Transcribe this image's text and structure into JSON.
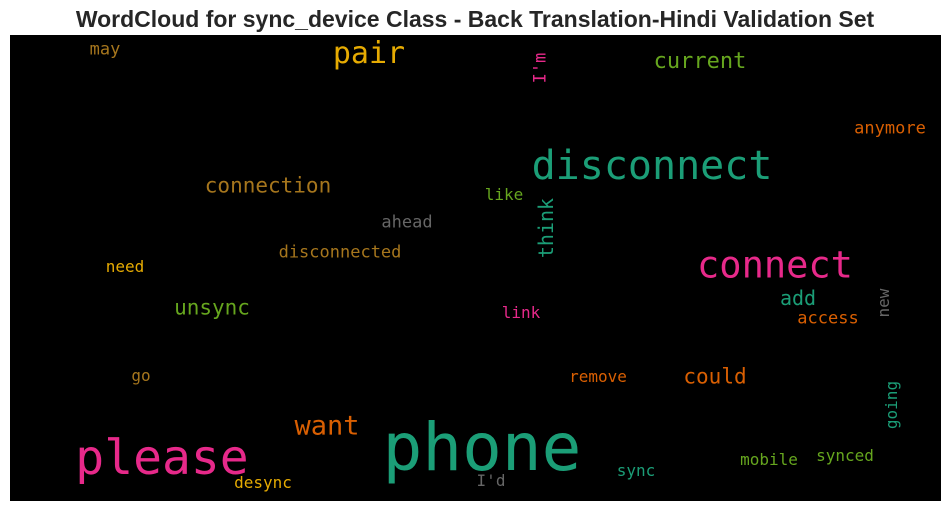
{
  "title": "WordCloud for sync_device Class - Back Translation-Hindi Validation Set",
  "chart_data": {
    "type": "wordcloud",
    "background": "#000000",
    "words": [
      {
        "text": "phone",
        "color": "#1b9e77",
        "weight": 1.0
      },
      {
        "text": "please",
        "color": "#e7298a",
        "weight": 0.78
      },
      {
        "text": "disconnect",
        "color": "#1b9e77",
        "weight": 0.66
      },
      {
        "text": "connect",
        "color": "#e7298a",
        "weight": 0.62
      },
      {
        "text": "pair",
        "color": "#e6ab02",
        "weight": 0.5
      },
      {
        "text": "want",
        "color": "#d95f02",
        "weight": 0.45
      },
      {
        "text": "current",
        "color": "#66a61e",
        "weight": 0.38
      },
      {
        "text": "connection",
        "color": "#a6761d",
        "weight": 0.35
      },
      {
        "text": "unsync",
        "color": "#66a61e",
        "weight": 0.35
      },
      {
        "text": "could",
        "color": "#d95f02",
        "weight": 0.35
      },
      {
        "text": "think",
        "color": "#1b9e77",
        "weight": 0.33
      },
      {
        "text": "add",
        "color": "#1b9e77",
        "weight": 0.33
      },
      {
        "text": "anymore",
        "color": "#d95f02",
        "weight": 0.28
      },
      {
        "text": "disconnected",
        "color": "#a6761d",
        "weight": 0.28
      },
      {
        "text": "access",
        "color": "#d95f02",
        "weight": 0.28
      },
      {
        "text": "ahead",
        "color": "#666666",
        "weight": 0.28
      },
      {
        "text": "may",
        "color": "#a6761d",
        "weight": 0.28
      },
      {
        "text": "I'm",
        "color": "#e7298a",
        "weight": 0.28
      },
      {
        "text": "like",
        "color": "#66a61e",
        "weight": 0.26
      },
      {
        "text": "need",
        "color": "#e6ab02",
        "weight": 0.26
      },
      {
        "text": "link",
        "color": "#e7298a",
        "weight": 0.26
      },
      {
        "text": "new",
        "color": "#666666",
        "weight": 0.26
      },
      {
        "text": "remove",
        "color": "#d95f02",
        "weight": 0.26
      },
      {
        "text": "go",
        "color": "#a6761d",
        "weight": 0.26
      },
      {
        "text": "going",
        "color": "#1b9e77",
        "weight": 0.26
      },
      {
        "text": "mobile",
        "color": "#66a61e",
        "weight": 0.26
      },
      {
        "text": "synced",
        "color": "#66a61e",
        "weight": 0.26
      },
      {
        "text": "sync",
        "color": "#1b9e77",
        "weight": 0.26
      },
      {
        "text": "desync",
        "color": "#e6ab02",
        "weight": 0.26
      },
      {
        "text": "I'd",
        "color": "#666666",
        "weight": 0.26
      }
    ]
  }
}
